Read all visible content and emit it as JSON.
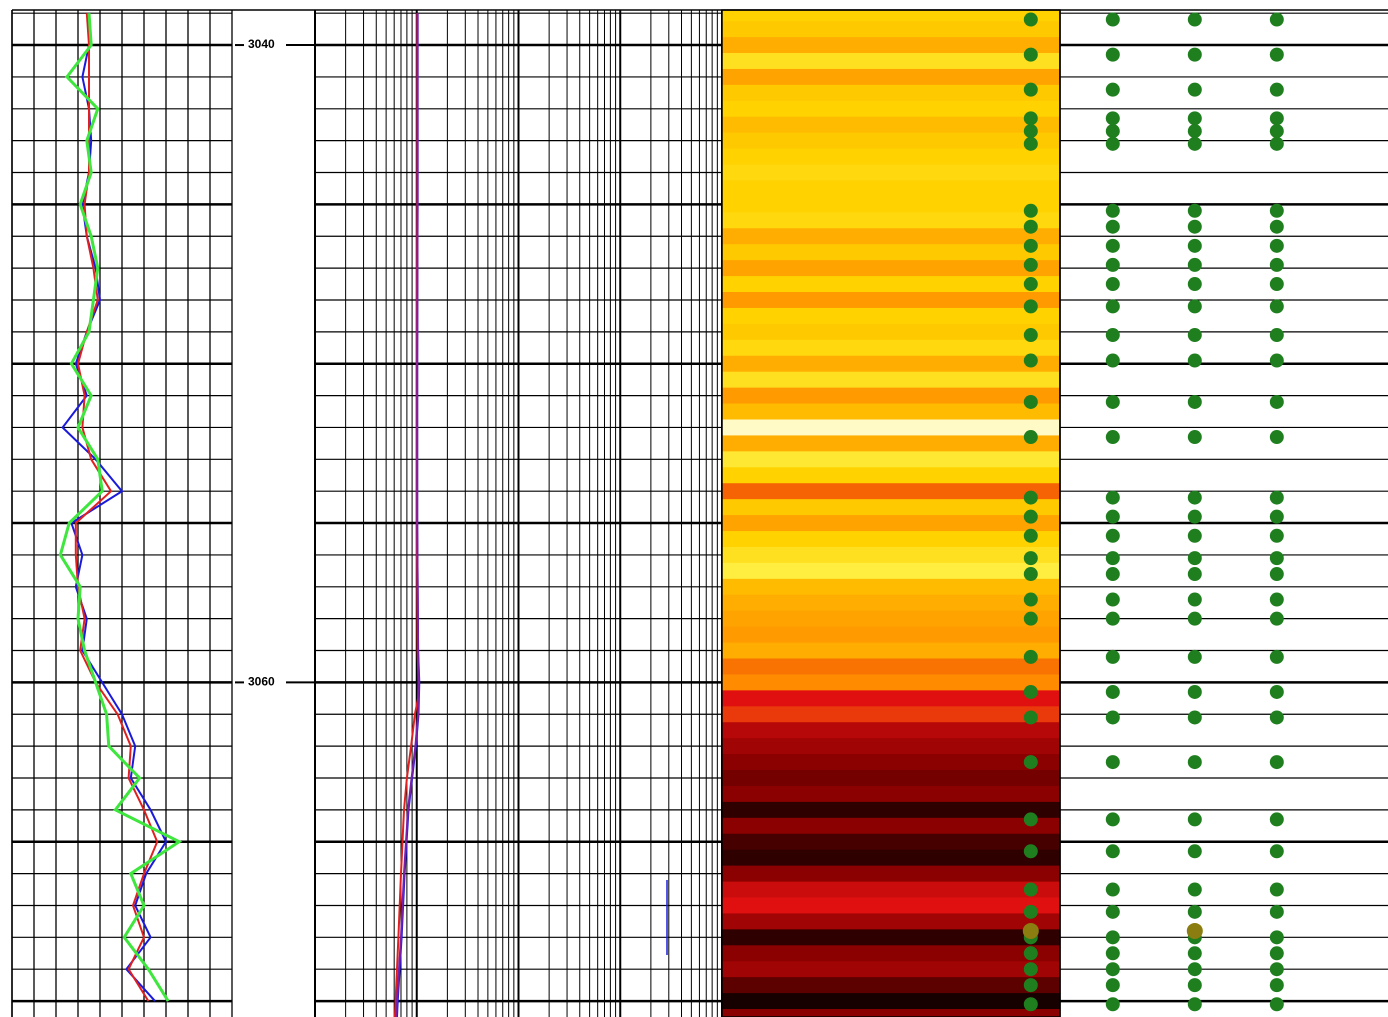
{
  "chart_data": [
    {
      "type": "line",
      "ylim": [
        3038.9,
        3070.5
      ],
      "xlim": [
        0,
        10
      ],
      "grid": {
        "x": 1,
        "y_major": 5,
        "y_minor": 1
      },
      "depth": [
        3039,
        3040,
        3041,
        3042,
        3043,
        3044,
        3045,
        3046,
        3047,
        3048,
        3049,
        3050,
        3051,
        3052,
        3053,
        3054,
        3055,
        3056,
        3057,
        3058,
        3059,
        3060,
        3061,
        3062,
        3063,
        3064,
        3065,
        3066,
        3067,
        3068,
        3069,
        3070
      ],
      "series": [
        {
          "color": "#1a1adc",
          "values": [
            3.5,
            3.5,
            3.2,
            3.5,
            3.6,
            3.5,
            3.2,
            3.4,
            3.8,
            4.0,
            3.4,
            2.9,
            3.4,
            2.3,
            3.8,
            5.0,
            2.7,
            3.2,
            2.9,
            3.4,
            3.2,
            4.1,
            5.0,
            5.6,
            5.4,
            6.3,
            7.0,
            6.1,
            5.6,
            6.3,
            5.2,
            6.5
          ]
        },
        {
          "color": "#e02020",
          "values": [
            3.4,
            3.5,
            3.5,
            3.5,
            3.5,
            3.5,
            3.3,
            3.4,
            3.7,
            3.9,
            3.4,
            3.0,
            3.3,
            3.2,
            3.6,
            4.5,
            2.9,
            2.9,
            3.0,
            3.3,
            3.1,
            3.8,
            4.8,
            5.4,
            5.3,
            6.0,
            6.6,
            6.0,
            5.5,
            6.0,
            5.3,
            6.2
          ]
        },
        {
          "color": "#3ee63e",
          "values": [
            3.5,
            3.6,
            2.5,
            3.9,
            3.4,
            3.6,
            3.1,
            3.6,
            3.9,
            3.7,
            3.5,
            2.7,
            3.6,
            3.0,
            3.9,
            4.1,
            2.6,
            2.2,
            3.1,
            3.0,
            3.3,
            3.8,
            4.3,
            4.4,
            5.8,
            4.7,
            7.6,
            5.4,
            6.0,
            5.1,
            6.2,
            7.1
          ]
        }
      ]
    },
    {
      "type": "depth",
      "ylim": [
        3038.9,
        3070.5
      ],
      "yticks": [
        3040,
        3060
      ]
    },
    {
      "type": "line",
      "ylim": [
        3038.9,
        3070.5
      ],
      "xlim": [
        1,
        10000
      ],
      "log": true,
      "grid": {
        "y_major": 5,
        "y_minor": 1
      },
      "depth": [
        3039,
        3040,
        3045,
        3050,
        3055,
        3059,
        3060,
        3060.5,
        3061,
        3062,
        3063,
        3064,
        3066,
        3068,
        3070,
        3070.5
      ],
      "series": [
        {
          "color": "#1a1adc",
          "values": [
            10.2,
            10.2,
            10.2,
            10.1,
            10.1,
            10.3,
            10.6,
            10.5,
            10.4,
            9.8,
            9.0,
            8.3,
            7.6,
            7.1,
            6.5,
            6.4
          ]
        },
        {
          "color": "#e02020",
          "values": [
            10.1,
            10.1,
            10.1,
            10.0,
            10.0,
            10.2,
            10.4,
            10.3,
            9.6,
            8.8,
            8.0,
            7.5,
            7.0,
            6.6,
            6.2,
            6.1
          ]
        },
        {
          "color": "#7a1fa8",
          "values": [
            10.2,
            10.2,
            10.2,
            10.1,
            10.1,
            10.3,
            10.5,
            10.4,
            10.3,
            9.7,
            8.9,
            8.2,
            7.5,
            7.0,
            6.4,
            6.3
          ]
        }
      ]
    },
    {
      "type": "heatmap",
      "ylim": [
        3038.9,
        3070.5
      ],
      "depth": [
        3039,
        3039.5,
        3040,
        3040.5,
        3041,
        3041.5,
        3042,
        3042.5,
        3043,
        3043.5,
        3044,
        3044.5,
        3045,
        3045.5,
        3046,
        3046.5,
        3047,
        3047.5,
        3048,
        3048.5,
        3049,
        3049.5,
        3050,
        3050.5,
        3051,
        3051.5,
        3052,
        3052.5,
        3053,
        3053.5,
        3054,
        3054.5,
        3055,
        3055.5,
        3056,
        3056.5,
        3057,
        3057.5,
        3058,
        3058.5,
        3059,
        3059.5,
        3060,
        3060.5,
        3061,
        3061.5,
        3062,
        3062.5,
        3063,
        3063.5,
        3064,
        3064.5,
        3065,
        3065.5,
        3066,
        3066.5,
        3067,
        3067.5,
        3068,
        3068.5,
        3069,
        3069.5,
        3070,
        3070.5
      ],
      "values": [
        0.8,
        0.78,
        0.72,
        0.85,
        0.7,
        0.78,
        0.8,
        0.75,
        0.78,
        0.8,
        0.82,
        0.8,
        0.8,
        0.82,
        0.72,
        0.78,
        0.7,
        0.8,
        0.68,
        0.8,
        0.78,
        0.82,
        0.72,
        0.85,
        0.68,
        0.75,
        0.97,
        0.72,
        0.88,
        0.8,
        0.6,
        0.78,
        0.7,
        0.8,
        0.85,
        0.9,
        0.75,
        0.72,
        0.7,
        0.68,
        0.72,
        0.62,
        0.65,
        0.5,
        0.55,
        0.4,
        0.35,
        0.3,
        0.25,
        0.3,
        0.1,
        0.3,
        0.15,
        0.1,
        0.3,
        0.45,
        0.5,
        0.35,
        0.1,
        0.3,
        0.35,
        0.2,
        0.05,
        0.3
      ]
    },
    {
      "type": "scatter",
      "ylim": [
        3038.9,
        3070.5
      ],
      "xlim": [
        0.5,
        4.5
      ],
      "grid": {
        "y_major": 5,
        "y_minor": 1
      },
      "series": [
        {
          "color": "#1f7f1f",
          "columns": [
            1,
            2,
            3,
            4
          ],
          "values": [
            3039.2,
            3040.3,
            3041.4,
            3042.3,
            3042.7,
            3043.1,
            3045.2,
            3045.7,
            3046.3,
            3046.9,
            3047.5,
            3048.2,
            3049.1,
            3049.9,
            3051.2,
            3052.3,
            3054.2,
            3054.8,
            3055.4,
            3056.1,
            3056.6,
            3057.4,
            3058.0,
            3059.2,
            3060.3,
            3061.1,
            3062.5,
            3064.3,
            3065.3,
            3066.5,
            3067.2,
            3068.0,
            3068.5,
            3069.0,
            3069.5,
            3070.1
          ]
        },
        {
          "color": "#8b7d10",
          "columns": [
            1,
            3
          ],
          "values": [
            3067.8
          ]
        }
      ]
    }
  ]
}
